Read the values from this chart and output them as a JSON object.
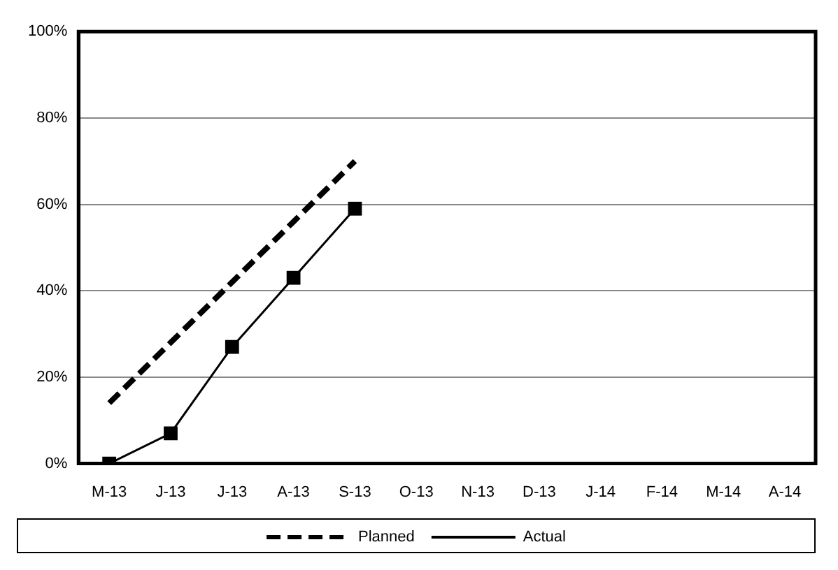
{
  "chart_data": {
    "type": "line",
    "categories": [
      "M-13",
      "J-13",
      "J-13",
      "A-13",
      "S-13",
      "O-13",
      "N-13",
      "D-13",
      "J-14",
      "F-14",
      "M-14",
      "A-14"
    ],
    "series": [
      {
        "name": "Planned",
        "color": "#000000",
        "line_style": "dashed",
        "marker": "none",
        "values": [
          14,
          28,
          42,
          56,
          70,
          null,
          null,
          null,
          null,
          null,
          null,
          null
        ]
      },
      {
        "name": "Actual",
        "color": "#000000",
        "line_style": "solid",
        "marker": "square",
        "values": [
          0,
          7,
          27,
          43,
          59,
          null,
          null,
          null,
          null,
          null,
          null,
          null
        ]
      }
    ],
    "ylim": [
      0,
      100
    ],
    "yticks": [
      {
        "value": 0,
        "label": "0%"
      },
      {
        "value": 20,
        "label": "20%"
      },
      {
        "value": 40,
        "label": "40%"
      },
      {
        "value": 60,
        "label": "60%"
      },
      {
        "value": 80,
        "label": "80%"
      },
      {
        "value": 100,
        "label": "100%"
      }
    ],
    "grid": "y",
    "legend": "bottom"
  }
}
